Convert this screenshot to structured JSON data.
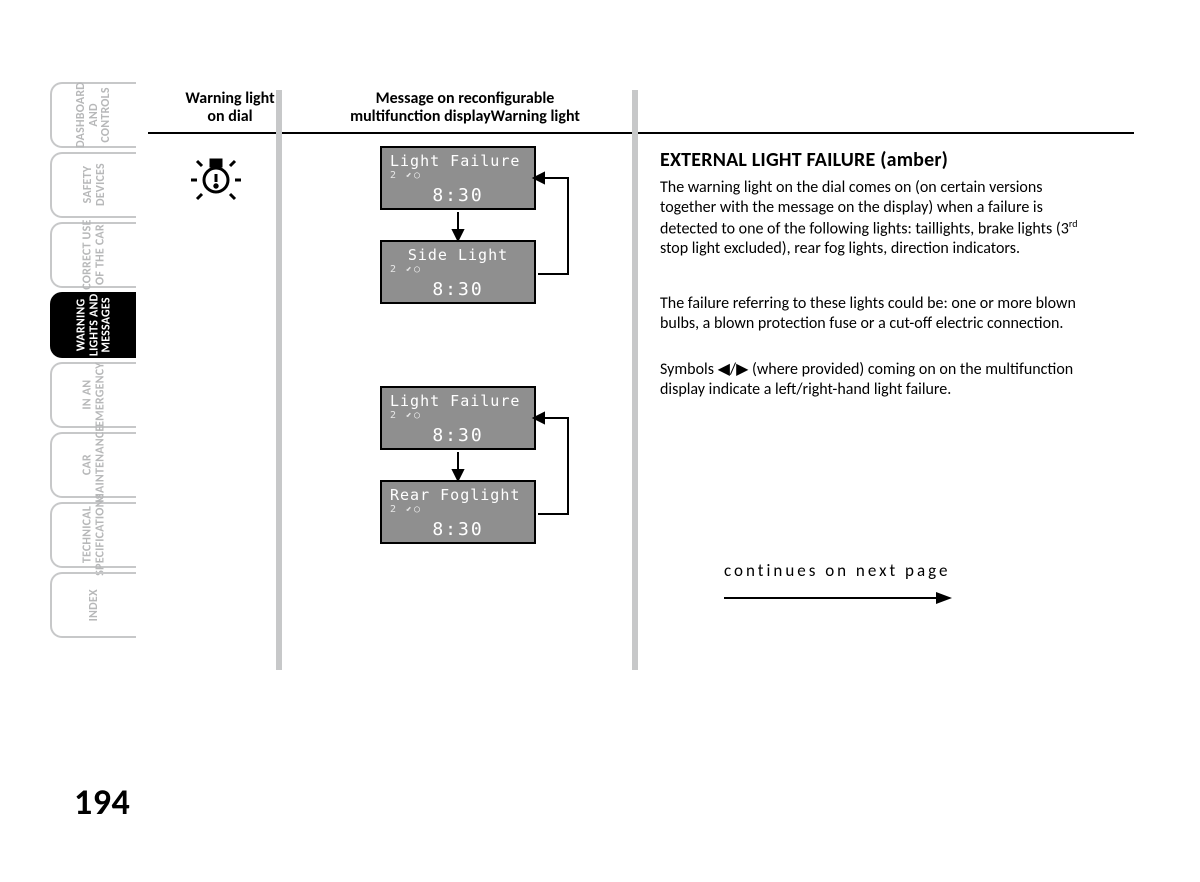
{
  "page_number": "194",
  "tabs": [
    {
      "label": "DASHBOARD\nAND\nCONTROLS",
      "active": false
    },
    {
      "label": "SAFETY\nDEVICES",
      "active": false
    },
    {
      "label": "CORRECT USE\nOF THE CAR",
      "active": false
    },
    {
      "label": "WARNING\nLIGHTS AND\nMESSAGES",
      "active": true
    },
    {
      "label": "IN AN\nEMERGENCY",
      "active": false
    },
    {
      "label": "CAR\nMAINTENANCE",
      "active": false
    },
    {
      "label": "TECHNICAL\nSPECIFICATIONS",
      "active": false
    },
    {
      "label": "INDEX",
      "active": false
    }
  ],
  "columns": {
    "col1": "Warning light\non dial",
    "col2": "Message on reconfigurable\nmultifunction displayWarning light"
  },
  "panels": {
    "seq1": [
      {
        "title": "Light Failure",
        "sub": "2 ⬋○",
        "time": "8:30"
      },
      {
        "title": "Side Light",
        "sub": "2 ⬋○",
        "time": "8:30"
      }
    ],
    "seq2": [
      {
        "title": "Light Failure",
        "sub": "2 ⬋○",
        "time": "8:30"
      },
      {
        "title": "Rear Foglight",
        "sub": "2 ⬋○",
        "time": "8:30"
      }
    ]
  },
  "icon": {
    "name": "bulb-exclamation-icon"
  },
  "heading": "EXTERNAL LIGHT FAILURE (amber)",
  "paragraphs": {
    "p1": "The warning light on the dial comes on (on certain versions together with the message on the display) when a failure is detected to one of the following lights: taillights, brake lights (3",
    "p1_sup": "rd",
    "p1_tail": " stop light excluded), rear fog lights, direction indicators.",
    "p2": "The failure referring to these lights could be: one or more blown bulbs, a blown protection fuse or a cut-off electric connection.",
    "p3a": "Symbols ",
    "p3b": " (where provided) coming on on the multifunction display indicate a left/right-hand light failure."
  },
  "continue_text": "continues on next page",
  "colors": {
    "tab_border": "#c7c8c9",
    "tab_text": "#b7b8b9",
    "panel_bg": "#8f8f8f",
    "sep": "#c7c8c9",
    "text": "#000000"
  }
}
